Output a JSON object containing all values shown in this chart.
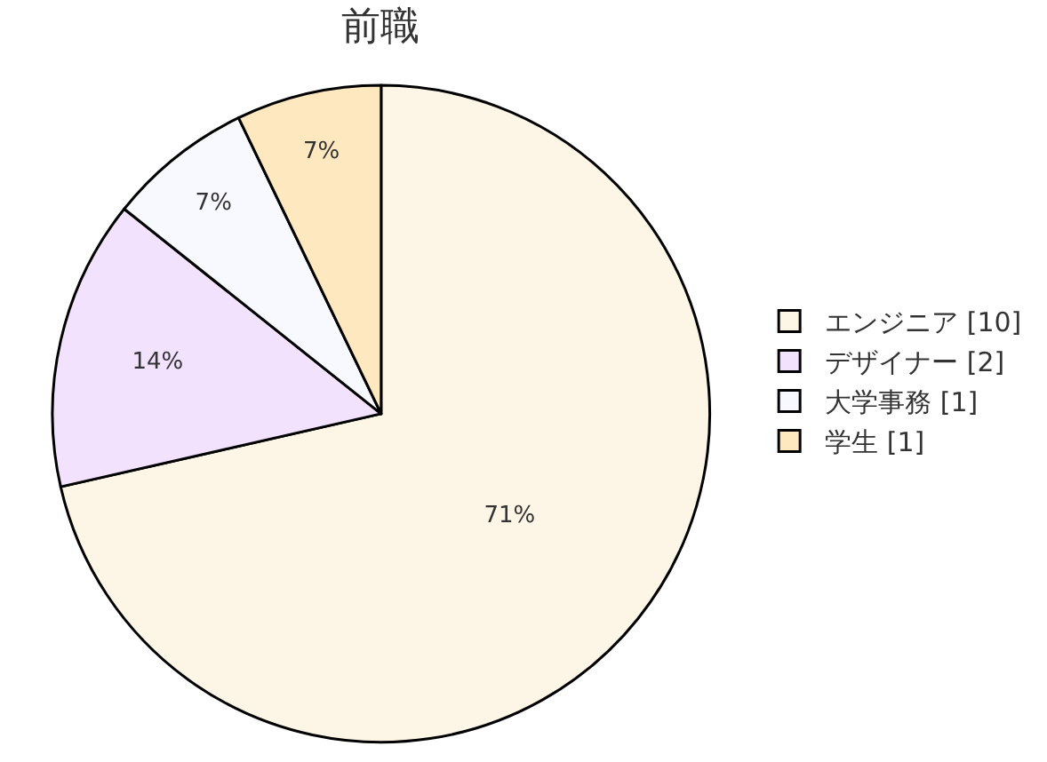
{
  "chart_data": {
    "type": "pie",
    "title": "前職",
    "categories": [
      "エンジニア [10]",
      "デザイナー [2]",
      "大学事務 [1]",
      "学生 [1]"
    ],
    "values": [
      71.43,
      14.29,
      7.14,
      7.14
    ],
    "value_labels": [
      "71%",
      "14%",
      "7%",
      "7%"
    ],
    "colors": [
      "#fdf6e6",
      "#f3e2fd",
      "#f8f9fe",
      "#fde8bf"
    ],
    "legend": "right"
  }
}
